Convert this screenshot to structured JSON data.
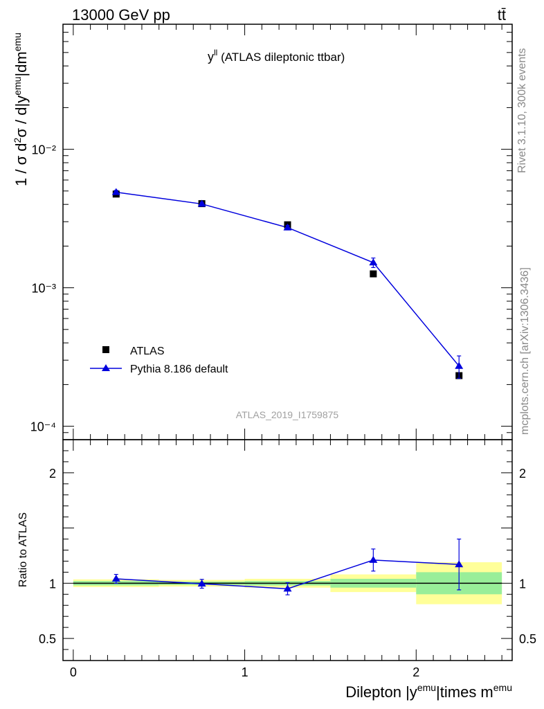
{
  "header": {
    "energy_label": "13000 GeV pp",
    "process_label": "tt̄"
  },
  "side_labels": {
    "rivet": "Rivet 3.1.10,  300k events",
    "source": "mcplots.cern.ch [arXiv:1306.3436]"
  },
  "plot_title": {
    "main": "y",
    "sup": "ll",
    "rest": " (ATLAS dileptonic ttbar)"
  },
  "watermark": "ATLAS_2019_I1759875",
  "colors": {
    "mc": "#0000dd",
    "data": "#000000",
    "band_inner": "#99ee99",
    "band_outer": "#ffff99"
  },
  "chart_data": [
    {
      "type": "scatter",
      "panel": "main",
      "yscale": "log",
      "ylabel": "1 / σ  d²σ / d|y^emu|dm^emu",
      "ylim": [
        8e-05,
        0.08
      ],
      "xlim": [
        -0.06,
        2.56
      ],
      "ytick_labels": [
        "10⁻⁴",
        "10⁻³",
        "10⁻²"
      ],
      "legend": [
        "ATLAS",
        "Pythia 8.186 default"
      ],
      "legend_position": "lower-left",
      "series": [
        {
          "name": "ATLAS",
          "marker": "square",
          "x": [
            0.25,
            0.75,
            1.25,
            1.75,
            2.25
          ],
          "values": [
            0.00475,
            0.00405,
            0.00285,
            0.00126,
            0.000232
          ]
        },
        {
          "name": "Pythia 8.186 default",
          "marker": "triangle",
          "x": [
            0.25,
            0.75,
            1.25,
            1.75,
            2.25
          ],
          "values": [
            0.0049,
            0.00403,
            0.00272,
            0.00152,
            0.000272
          ],
          "errors": [
            0.00015,
            0.00012,
            0.0001,
            0.00012,
            5e-05
          ]
        }
      ]
    },
    {
      "type": "line",
      "panel": "ratio",
      "ylabel": "Ratio to ATLAS",
      "xlabel_main": "Dilepton |y",
      "xlabel_sup1": "emu",
      "xlabel_mid": "|times m",
      "xlabel_sup2": "emu",
      "ylim": [
        0.3,
        2.3
      ],
      "xlim": [
        -0.06,
        2.56
      ],
      "ytick_labels": [
        "0.5",
        "1",
        "2"
      ],
      "xtick_labels": [
        "0",
        "1",
        "2"
      ],
      "bins": [
        [
          0,
          0.5
        ],
        [
          0.5,
          1.0
        ],
        [
          1.0,
          1.5
        ],
        [
          1.5,
          2.0
        ],
        [
          2.0,
          2.5
        ]
      ],
      "band_inner": [
        0.02,
        0.015,
        0.02,
        0.04,
        0.1
      ],
      "band_outer": [
        0.035,
        0.03,
        0.04,
        0.08,
        0.19
      ],
      "series": [
        {
          "name": "Pythia 8.186 default",
          "x": [
            0.25,
            0.75,
            1.25,
            1.75,
            2.25
          ],
          "values": [
            1.04,
            0.995,
            0.95,
            1.21,
            1.17
          ],
          "errors": [
            0.04,
            0.04,
            0.055,
            0.1,
            0.23
          ]
        }
      ]
    }
  ]
}
